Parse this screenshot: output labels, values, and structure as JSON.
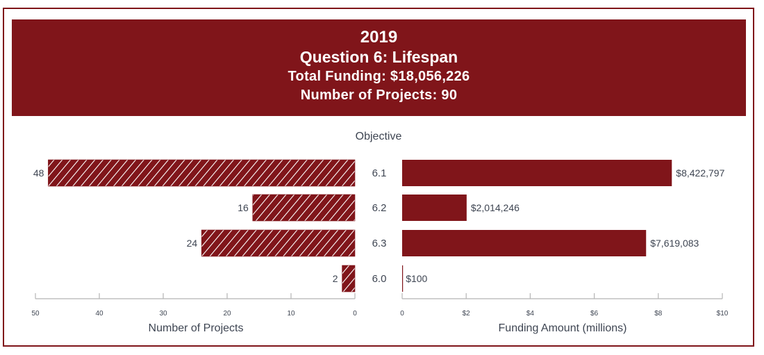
{
  "header": {
    "year": "2019",
    "question": "Question 6: Lifespan",
    "total_funding": "Total Funding: $18,056,226",
    "num_projects": "Number of Projects: 90"
  },
  "colors": {
    "accent": "#80151a",
    "text": "#3e4552",
    "axis": "#b5b5b5"
  },
  "chart_data": [
    {
      "type": "bar",
      "orientation": "horizontal-reversed",
      "title": "Number of Projects",
      "xlabel": "Number of Projects",
      "ylabel": "Objective",
      "categories": [
        "6.1",
        "6.2",
        "6.3",
        "6.0"
      ],
      "values": [
        48,
        16,
        24,
        2
      ],
      "data_labels": [
        "48",
        "16",
        "24",
        "2"
      ],
      "xlim": [
        0,
        50
      ],
      "ticks": [
        50,
        40,
        30,
        20,
        10,
        0
      ],
      "tick_labels": [
        "50",
        "40",
        "30",
        "20",
        "10",
        "0"
      ],
      "pattern": "diagonal-hatch",
      "grid": false
    },
    {
      "type": "bar",
      "orientation": "horizontal",
      "title": "Funding Amount (millions)",
      "xlabel": "Funding Amount (millions)",
      "ylabel": "Objective",
      "categories": [
        "6.1",
        "6.2",
        "6.3",
        "6.0"
      ],
      "values": [
        8.422797,
        2.014246,
        7.619083,
        0.0001
      ],
      "data_labels": [
        "$8,422,797",
        "$2,014,246",
        "$7,619,083",
        "$100"
      ],
      "xlim": [
        0,
        10
      ],
      "ticks": [
        0,
        2,
        4,
        6,
        8,
        10
      ],
      "tick_labels": [
        "0",
        "$2",
        "$4",
        "$6",
        "$8",
        "$10"
      ],
      "pattern": "solid",
      "grid": false
    }
  ],
  "center_axis_title": "Objective"
}
